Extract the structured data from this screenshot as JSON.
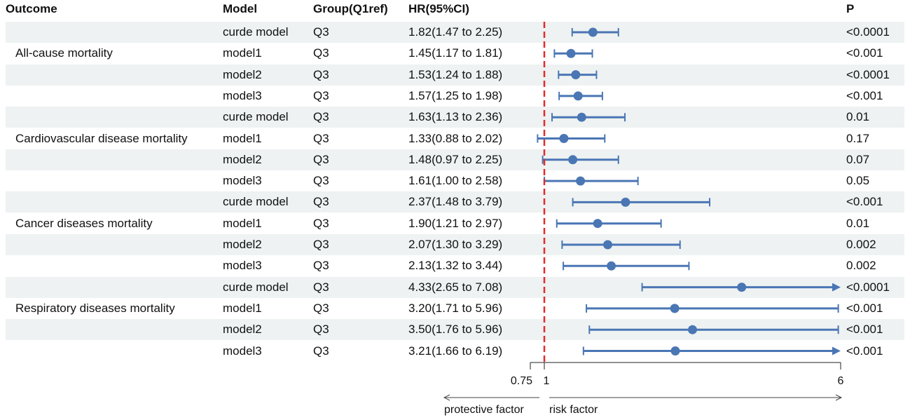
{
  "chart_data": {
    "type": "forest",
    "headers": {
      "outcome": "Outcome",
      "model": "Model",
      "group": "Group(Q1ref)",
      "hr": "HR(95%CI)",
      "p": "P"
    },
    "outcomes": [
      "All-cause mortality",
      "Cardiovascular  disease mortality",
      "Cancer diseases mortality",
      "Respiratory diseases mortality"
    ],
    "rows": [
      {
        "model": "curde model",
        "group": "Q3",
        "hr_text": "1.82(1.47 to 2.25)",
        "hr": 1.82,
        "lo": 1.47,
        "hi": 2.25,
        "p": "<0.0001"
      },
      {
        "model": "model1",
        "group": "Q3",
        "hr_text": "1.45(1.17 to 1.81)",
        "hr": 1.45,
        "lo": 1.17,
        "hi": 1.81,
        "p": "<0.001"
      },
      {
        "model": "model2",
        "group": "Q3",
        "hr_text": "1.53(1.24 to 1.88)",
        "hr": 1.53,
        "lo": 1.24,
        "hi": 1.88,
        "p": "<0.0001"
      },
      {
        "model": "model3",
        "group": "Q3",
        "hr_text": "1.57(1.25 to 1.98)",
        "hr": 1.57,
        "lo": 1.25,
        "hi": 1.98,
        "p": "<0.001"
      },
      {
        "model": "curde model",
        "group": "Q3",
        "hr_text": "1.63(1.13 to 2.36)",
        "hr": 1.63,
        "lo": 1.13,
        "hi": 2.36,
        "p": "0.01"
      },
      {
        "model": "model1",
        "group": "Q3",
        "hr_text": "1.33(0.88 to 2.02)",
        "hr": 1.33,
        "lo": 0.88,
        "hi": 2.02,
        "p": "0.17"
      },
      {
        "model": "model2",
        "group": "Q3",
        "hr_text": "1.48(0.97 to 2.25)",
        "hr": 1.48,
        "lo": 0.97,
        "hi": 2.25,
        "p": "0.07"
      },
      {
        "model": "model3",
        "group": "Q3",
        "hr_text": "1.61(1.00 to 2.58)",
        "hr": 1.61,
        "lo": 1.0,
        "hi": 2.58,
        "p": "0.05"
      },
      {
        "model": "curde model",
        "group": "Q3",
        "hr_text": "2.37(1.48 to 3.79)",
        "hr": 2.37,
        "lo": 1.48,
        "hi": 3.79,
        "p": "<0.001"
      },
      {
        "model": "model1",
        "group": "Q3",
        "hr_text": "1.90(1.21 to 2.97)",
        "hr": 1.9,
        "lo": 1.21,
        "hi": 2.97,
        "p": "0.01"
      },
      {
        "model": "model2",
        "group": "Q3",
        "hr_text": "2.07(1.30 to 3.29)",
        "hr": 2.07,
        "lo": 1.3,
        "hi": 3.29,
        "p": "0.002"
      },
      {
        "model": "model3",
        "group": "Q3",
        "hr_text": "2.13(1.32 to 3.44)",
        "hr": 2.13,
        "lo": 1.32,
        "hi": 3.44,
        "p": "0.002"
      },
      {
        "model": "curde model",
        "group": "Q3",
        "hr_text": "4.33(2.65 to 7.08)",
        "hr": 4.33,
        "lo": 2.65,
        "hi": 7.08,
        "p": "<0.0001"
      },
      {
        "model": "model1",
        "group": "Q3",
        "hr_text": "3.20(1.71 to 5.96)",
        "hr": 3.2,
        "lo": 1.71,
        "hi": 5.96,
        "p": "<0.001"
      },
      {
        "model": "model2",
        "group": "Q3",
        "hr_text": "3.50(1.76 to 5.96)",
        "hr": 3.5,
        "lo": 1.76,
        "hi": 5.96,
        "p": "<0.001"
      },
      {
        "model": "model3",
        "group": "Q3",
        "hr_text": "3.21(1.66 to 6.19)",
        "hr": 3.21,
        "lo": 1.66,
        "hi": 6.19,
        "p": "<0.001"
      }
    ],
    "x_axis": {
      "min": 0.75,
      "max": 6,
      "ticks": [
        0.75,
        1,
        6
      ],
      "tick_labels": [
        "0.75",
        "1",
        "6"
      ],
      "reference": 1
    },
    "directions": {
      "left": "protective factor",
      "right": "risk factor"
    },
    "colors": {
      "marker": "#4a76b4",
      "reference_line": "#e32b2b",
      "row_shade": "#eef2f2"
    }
  }
}
